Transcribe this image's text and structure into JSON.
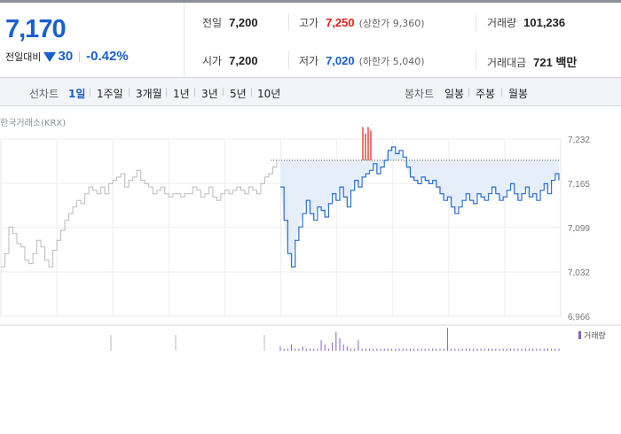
{
  "summary": {
    "price": "7,170",
    "change_label": "전일대비",
    "change_value": "30",
    "change_direction": "down",
    "change_percent": "-0.42%",
    "prev_close": {
      "label": "전일",
      "value": "7,200"
    },
    "open": {
      "label": "시가",
      "value": "7,200"
    },
    "high": {
      "label": "고가",
      "value": "7,250",
      "sub": "(상한가 9,360)"
    },
    "low": {
      "label": "저가",
      "value": "7,020",
      "sub": "(하한가 5,040)"
    },
    "volume": {
      "label": "거래량",
      "value": "101,236"
    },
    "trade_value": {
      "label": "거래대금",
      "value": "721 백만"
    }
  },
  "tabs": {
    "line_label": "선차트",
    "line_items": [
      "1일",
      "1주일",
      "3개월",
      "1년",
      "3년",
      "5년",
      "10년"
    ],
    "line_active": 0,
    "candle_label": "봉차트",
    "candle_items": [
      "일봉",
      "주봉",
      "월봉"
    ]
  },
  "chart": {
    "source": "한국거래소(KRX)",
    "volume_legend": "거래량",
    "colors": {
      "today": "#2b6fd0",
      "prev": "#bbbbbb",
      "fill": "#e6eefa",
      "high": "#e0201c",
      "volume": "#8b5fbf"
    }
  },
  "chart_data": {
    "type": "line",
    "y_ticks": [
      "7,232",
      "7,165",
      "7,099",
      "7,032",
      "6,966"
    ],
    "ylim": [
      6966,
      7232
    ],
    "reference_price": 7200,
    "series": [
      {
        "values": [
          7040,
          7060,
          7100,
          7090,
          7075,
          7070,
          7050,
          7045,
          7060,
          7080,
          7070,
          7050,
          7040,
          7065,
          7080,
          7095,
          7110,
          7120,
          7130,
          7140,
          7135,
          7150,
          7160,
          7155,
          7150,
          7160,
          7150,
          7165,
          7170,
          7175,
          7180,
          7160,
          7170,
          7175,
          7185,
          7170,
          7165,
          7160,
          7150,
          7155,
          7160,
          7150,
          7145,
          7150,
          7150,
          7145,
          7150,
          7150,
          7160,
          7155,
          7145,
          7150,
          7160,
          7145,
          7140,
          7150,
          7155,
          7150,
          7155,
          7160,
          7155,
          7150,
          7160,
          7155,
          7150,
          7165,
          7175,
          7180,
          7190,
          7200
        ]
      },
      {
        "values": [
          7160,
          7110,
          7060,
          7040,
          7080,
          7100,
          7120,
          7140,
          7120,
          7110,
          7130,
          7125,
          7115,
          7135,
          7150,
          7140,
          7160,
          7145,
          7130,
          7155,
          7170,
          7160,
          7175,
          7180,
          7185,
          7195,
          7180,
          7190,
          7200,
          7215,
          7220,
          7210,
          7215,
          7205,
          7190,
          7175,
          7170,
          7165,
          7175,
          7170,
          7165,
          7170,
          7160,
          7150,
          7140,
          7145,
          7130,
          7120,
          7130,
          7140,
          7150,
          7140,
          7135,
          7150,
          7145,
          7140,
          7150,
          7160,
          7150,
          7140,
          7145,
          7155,
          7165,
          7150,
          7140,
          7150,
          7160,
          7145,
          7150,
          7140,
          7155,
          7165,
          7150,
          7170,
          7180,
          7170
        ]
      }
    ],
    "high_marks": [
      7250,
      7240,
      7250,
      7245
    ],
    "volume": [
      2,
      1,
      1,
      3,
      1,
      1,
      2,
      1,
      1,
      1,
      1,
      5,
      3,
      1,
      4,
      9,
      6,
      3,
      2,
      1,
      1,
      5,
      1,
      1,
      1,
      1,
      1,
      1,
      1,
      1,
      1,
      1,
      1,
      1,
      1,
      1,
      1,
      1,
      1,
      1,
      1,
      1,
      1,
      1,
      1,
      11,
      1,
      1,
      1,
      1,
      1,
      1,
      1,
      1,
      1,
      1,
      1,
      1,
      1,
      1,
      1,
      1,
      1,
      1,
      1,
      1,
      1,
      1,
      1,
      1,
      1,
      1,
      1,
      1,
      1,
      1
    ]
  }
}
